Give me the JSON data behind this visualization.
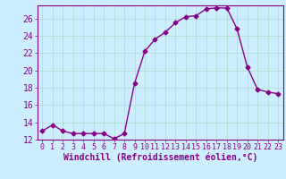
{
  "x": [
    0,
    1,
    2,
    3,
    4,
    5,
    6,
    7,
    8,
    9,
    10,
    11,
    12,
    13,
    14,
    15,
    16,
    17,
    18,
    19,
    20,
    21,
    22,
    23
  ],
  "y": [
    13,
    13.7,
    13,
    12.7,
    12.7,
    12.7,
    12.7,
    12.1,
    12.7,
    18.5,
    22.2,
    23.6,
    24.4,
    25.5,
    26.2,
    26.3,
    27.1,
    27.2,
    27.2,
    24.8,
    20.4,
    17.8,
    17.5,
    17.3
  ],
  "xlabel": "Windchill (Refroidissement éolien,°C)",
  "ylim": [
    12,
    27.5
  ],
  "xlim": [
    -0.5,
    23.5
  ],
  "yticks": [
    12,
    14,
    16,
    18,
    20,
    22,
    24,
    26
  ],
  "xticks": [
    0,
    1,
    2,
    3,
    4,
    5,
    6,
    7,
    8,
    9,
    10,
    11,
    12,
    13,
    14,
    15,
    16,
    17,
    18,
    19,
    20,
    21,
    22,
    23
  ],
  "line_color": "#880088",
  "marker": "D",
  "marker_size": 2.5,
  "bg_color": "#cceeff",
  "grid_color": "#aaddcc",
  "tick_label_color": "#880088",
  "xlabel_color": "#880088",
  "xlabel_fontsize": 7,
  "tick_fontsize": 6,
  "ytick_fontsize": 7
}
